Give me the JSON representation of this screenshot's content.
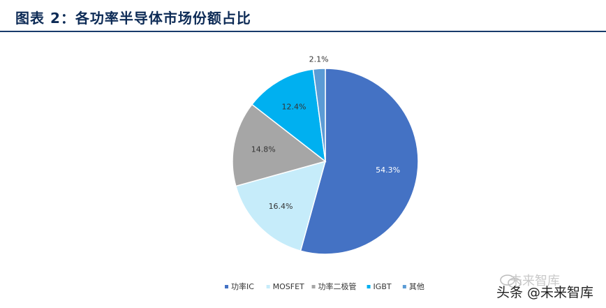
{
  "header": {
    "title": "图表 2：各功率半导体市场份额占比"
  },
  "watermark": {
    "text": "头条 @未来智库",
    "text_faded": "未来智库",
    "icon": "wechat-icon"
  },
  "chart_data": {
    "type": "pie",
    "title": "",
    "categories": [
      "功率IC",
      "MOSFET",
      "功率二极管",
      "IGBT",
      "其他"
    ],
    "values": [
      54.3,
      16.4,
      14.8,
      12.4,
      2.1
    ],
    "value_labels": [
      "54.3%",
      "16.4%",
      "14.8%",
      "12.4%",
      "2.1%"
    ],
    "colors": [
      "#4472c4",
      "#c6ecfa",
      "#a6a6a6",
      "#00b0f0",
      "#5b9bd5"
    ],
    "label_colors": [
      "#ffffff",
      "#333333",
      "#333333",
      "#333333",
      "#333333"
    ],
    "start_angle_deg": 0,
    "direction": "clockwise",
    "legend_placement": "bottom"
  }
}
